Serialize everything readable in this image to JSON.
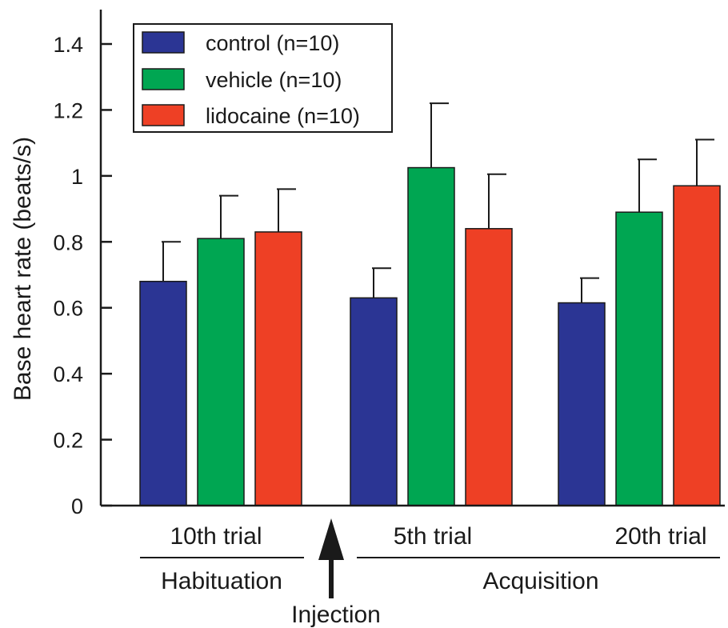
{
  "chart_data": {
    "type": "bar",
    "ylabel": "Base heart rate (beats/s)",
    "ylim": [
      0,
      1.4
    ],
    "yticks": [
      "0",
      "0.2",
      "0.4",
      "0.6",
      "0.8",
      "1",
      "1.2",
      "1.4"
    ],
    "categories": [
      "10th trial",
      "5th trial",
      "20th trial"
    ],
    "series": [
      {
        "name": "control (n=10)",
        "color": "#2b3594",
        "values": [
          0.68,
          0.63,
          0.615
        ],
        "errors": [
          0.12,
          0.09,
          0.075
        ]
      },
      {
        "name": "vehicle (n=10)",
        "color": "#00a652",
        "values": [
          0.81,
          1.025,
          0.89
        ],
        "errors": [
          0.13,
          0.195,
          0.16
        ]
      },
      {
        "name": "lidocaine (n=10)",
        "color": "#ee4025",
        "values": [
          0.83,
          0.84,
          0.97
        ],
        "errors": [
          0.13,
          0.165,
          0.14
        ]
      }
    ],
    "legend_position": "top-left",
    "phases": [
      "Habituation",
      "Acquisition"
    ],
    "annotation": "Injection"
  }
}
